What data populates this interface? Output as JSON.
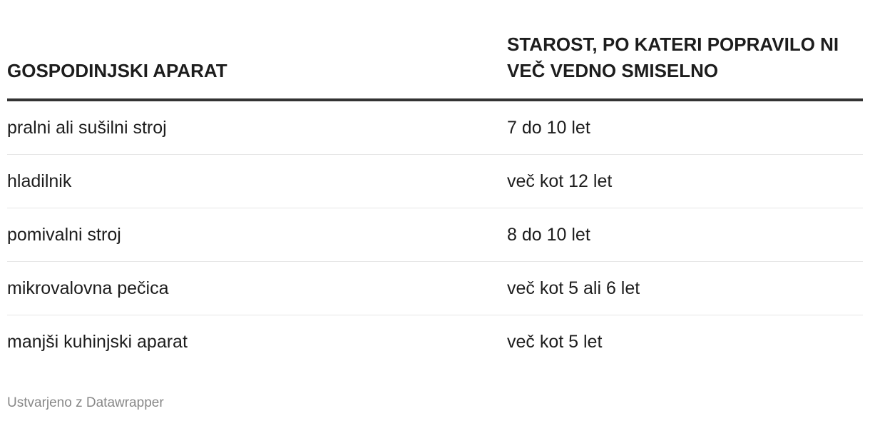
{
  "chart_data": {
    "type": "table",
    "columns": [
      "GOSPODINJSKI APARAT",
      "STAROST, PO KATERI POPRAVILO NI VEČ VEDNO SMISELNO"
    ],
    "rows": [
      [
        "pralni ali sušilni stroj",
        "7 do 10 let"
      ],
      [
        "hladilnik",
        "več kot 12 let"
      ],
      [
        "pomivalni stroj",
        "8 do 10 let"
      ],
      [
        "mikrovalovna pečica",
        "več kot 5 ali 6 let"
      ],
      [
        "manjši kuhinjski aparat",
        "več kot 5 let"
      ]
    ]
  },
  "footer": "Ustvarjeno z Datawrapper",
  "colors": {
    "text": "#1d1d1d",
    "header_rule": "#333333",
    "row_rule": "#e6e6e6",
    "footer": "#888888"
  }
}
